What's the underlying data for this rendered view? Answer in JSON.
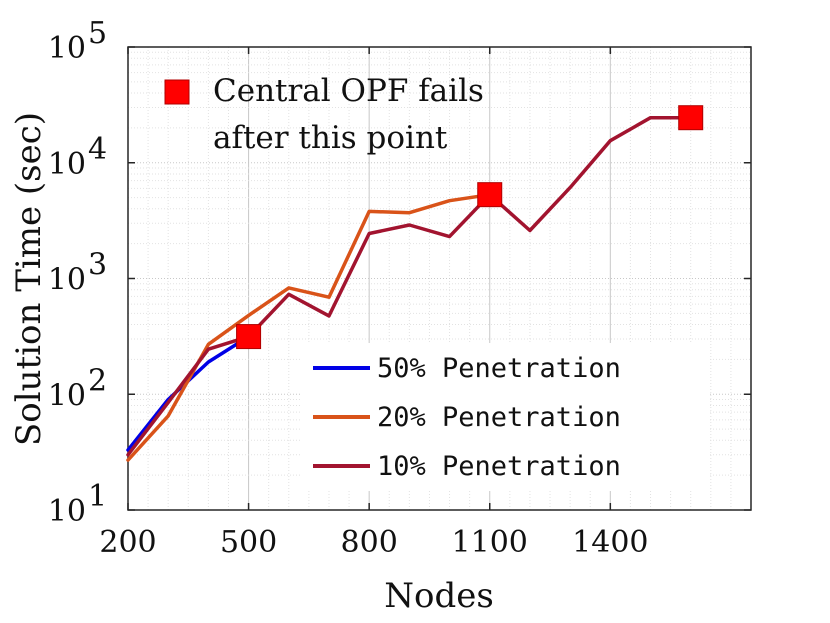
{
  "chart_data": {
    "type": "line",
    "title": "",
    "xlabel": "Nodes",
    "ylabel": "Solution Time (sec)",
    "xlim": [
      200,
      1750
    ],
    "ylim": [
      10,
      100000
    ],
    "yscale": "log",
    "grid": true,
    "x_ticks": [
      200,
      500,
      800,
      1100,
      1400
    ],
    "x_tick_labels": [
      "200",
      "500",
      "800",
      "1100",
      "1400"
    ],
    "y_ticks": [
      {
        "value": 10,
        "base": "10",
        "exp": "1"
      },
      {
        "value": 100,
        "base": "10",
        "exp": "2"
      },
      {
        "value": 1000,
        "base": "10",
        "exp": "3"
      },
      {
        "value": 10000,
        "base": "10",
        "exp": "4"
      },
      {
        "value": 100000,
        "base": "10",
        "exp": "5"
      }
    ],
    "series": [
      {
        "name": "50% Penetration",
        "color": "#0000e6",
        "x": [
          200,
          300,
          400,
          500
        ],
        "y": [
          33,
          90,
          190,
          315
        ]
      },
      {
        "name": "20% Penetration",
        "color": "#d95319",
        "x": [
          200,
          300,
          400,
          500,
          600,
          700,
          800,
          900,
          1000,
          1100
        ],
        "y": [
          27,
          65,
          270,
          480,
          830,
          690,
          3800,
          3700,
          4700,
          5300
        ]
      },
      {
        "name": "10% Penetration",
        "color": "#a2142f",
        "x": [
          200,
          300,
          400,
          500,
          600,
          700,
          800,
          900,
          1000,
          1100,
          1200,
          1300,
          1400,
          1500,
          1600
        ],
        "y": [
          30,
          85,
          245,
          315,
          730,
          475,
          2450,
          2900,
          2300,
          5300,
          2600,
          6100,
          15500,
          24500,
          24500
        ]
      }
    ],
    "markers": [
      {
        "x": 500,
        "y": 315
      },
      {
        "x": 1100,
        "y": 5300
      },
      {
        "x": 1600,
        "y": 24500
      }
    ],
    "marker_color": "#ff0000",
    "annotation": {
      "line1": "Central OPF fails",
      "line2": "after this point"
    },
    "legend_position": "bottom-right"
  }
}
